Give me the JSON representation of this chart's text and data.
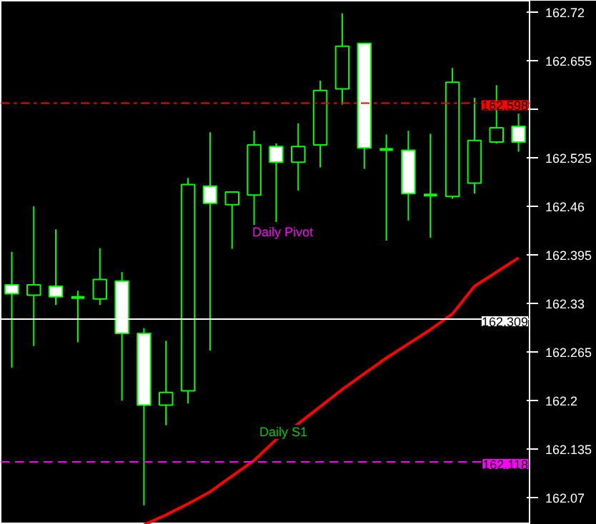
{
  "chart_data": {
    "type": "candlestick",
    "categories": [
      null,
      null,
      null,
      null,
      null,
      null,
      null,
      null,
      null,
      null,
      null,
      null,
      null,
      null,
      null,
      null,
      null,
      null,
      null,
      null,
      null,
      null,
      null,
      null
    ],
    "ohlc": [
      [
        162.355,
        162.399,
        162.244,
        162.343
      ],
      [
        162.341,
        162.46,
        162.273,
        162.355
      ],
      [
        162.353,
        162.429,
        162.328,
        162.339
      ],
      [
        162.338,
        162.347,
        162.278,
        162.338
      ],
      [
        162.336,
        162.404,
        162.328,
        162.362
      ],
      [
        162.36,
        162.372,
        162.2,
        162.29
      ],
      [
        162.29,
        162.297,
        162.06,
        162.194
      ],
      [
        162.194,
        162.28,
        162.167,
        162.211
      ],
      [
        162.213,
        162.498,
        162.196,
        162.489
      ],
      [
        162.487,
        162.559,
        162.267,
        162.464
      ],
      [
        162.462,
        162.479,
        162.403,
        162.479
      ],
      [
        162.475,
        162.561,
        162.429,
        162.542
      ],
      [
        162.54,
        162.544,
        162.439,
        162.519
      ],
      [
        162.519,
        162.571,
        162.481,
        162.54
      ],
      [
        162.542,
        162.628,
        162.512,
        162.615
      ],
      [
        162.617,
        162.718,
        162.596,
        162.674
      ],
      [
        162.678,
        162.678,
        162.51,
        162.538
      ],
      [
        162.536,
        162.556,
        162.414,
        162.536
      ],
      [
        162.535,
        162.561,
        162.441,
        162.477
      ],
      [
        162.475,
        162.557,
        162.418,
        162.475
      ],
      [
        162.473,
        162.645,
        162.47,
        162.626
      ],
      [
        162.491,
        162.605,
        162.477,
        162.548
      ],
      [
        162.546,
        162.622,
        162.544,
        162.565
      ],
      [
        162.567,
        162.584,
        162.533,
        162.546
      ]
    ],
    "series": [
      {
        "type": "line",
        "color": "#ff0000",
        "values": [
          null,
          null,
          null,
          null,
          null,
          null,
          162.034,
          162.047,
          162.062,
          162.078,
          162.099,
          162.12,
          162.148,
          162.169,
          162.192,
          162.215,
          162.236,
          162.257,
          162.276,
          162.295,
          162.316,
          162.353,
          162.372,
          162.391
        ]
      }
    ],
    "ylim": [
      162.034,
      162.735
    ],
    "yticks": [
      162.72,
      162.655,
      {
        "value": 162.59,
        "label": null
      },
      162.525,
      162.46,
      162.395,
      162.33,
      162.265,
      162.2,
      162.135,
      162.07
    ],
    "ref_lines": [
      {
        "axis": "y",
        "value": 162.598,
        "label": "162.598",
        "color": "#ff0000",
        "line_style": "dashdot"
      },
      {
        "axis": "y",
        "value": 162.309,
        "label": "162.309",
        "color": "#ffffff",
        "line_style": "solid"
      },
      {
        "axis": "y",
        "value": 162.118,
        "label": "162.118",
        "color": "#ff00ff",
        "line_style": "dashed"
      }
    ],
    "annotations": [
      "Daily Pivot",
      "Daily S1"
    ],
    "tick_labels": "y",
    "grid": false
  }
}
